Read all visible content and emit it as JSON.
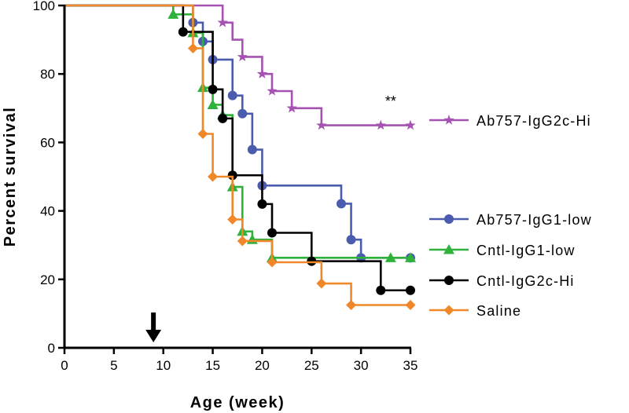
{
  "chart_data": {
    "type": "step",
    "title": "",
    "xlabel": "Age (week)",
    "ylabel": "Percent survival",
    "xlim": [
      0,
      35
    ],
    "ylim": [
      0,
      100
    ],
    "xticks": [
      0,
      5,
      10,
      15,
      20,
      25,
      30,
      35
    ],
    "yticks": [
      0,
      20,
      40,
      60,
      80,
      100
    ],
    "grid": false,
    "annotations": [
      {
        "text": "**",
        "x": 33,
        "y": 72
      },
      {
        "text": "arrow-down",
        "x": 9,
        "y": 2
      }
    ],
    "series": [
      {
        "name": "Ab757-IgG2c-Hi",
        "color": "#a652b3",
        "marker": "star",
        "steps": [
          [
            0,
            100
          ],
          [
            16,
            95
          ],
          [
            17,
            90
          ],
          [
            18,
            85
          ],
          [
            20,
            80
          ],
          [
            21,
            75
          ],
          [
            23,
            70
          ],
          [
            26,
            65
          ],
          [
            35,
            65
          ]
        ],
        "markers": [
          [
            16,
            95
          ],
          [
            18,
            85
          ],
          [
            20,
            80
          ],
          [
            21,
            75
          ],
          [
            23,
            70
          ],
          [
            26,
            65
          ],
          [
            32,
            65
          ],
          [
            35,
            65
          ]
        ]
      },
      {
        "name": "Ab757-IgG1-low",
        "color": "#4b5cae",
        "marker": "circle",
        "steps": [
          [
            0,
            100
          ],
          [
            13,
            95
          ],
          [
            14,
            89.5
          ],
          [
            15,
            84.2
          ],
          [
            17,
            73.7
          ],
          [
            18,
            68.4
          ],
          [
            19,
            57.9
          ],
          [
            20,
            47.4
          ],
          [
            28,
            42.1
          ],
          [
            29,
            31.6
          ],
          [
            30,
            26.3
          ],
          [
            35,
            26.3
          ]
        ],
        "markers": [
          [
            13,
            95
          ],
          [
            14,
            89.5
          ],
          [
            15,
            84.2
          ],
          [
            17,
            73.7
          ],
          [
            18,
            68.4
          ],
          [
            19,
            57.9
          ],
          [
            20,
            47.4
          ],
          [
            28,
            42.1
          ],
          [
            29,
            31.6
          ],
          [
            30,
            26.3
          ],
          [
            35,
            26.3
          ]
        ]
      },
      {
        "name": "Cntl-IgG1-low",
        "color": "#2eb23c",
        "marker": "triangle",
        "steps": [
          [
            0,
            100
          ],
          [
            11,
            97.4
          ],
          [
            13,
            92
          ],
          [
            14,
            76
          ],
          [
            15,
            71
          ],
          [
            16,
            68
          ],
          [
            17,
            47
          ],
          [
            18,
            34
          ],
          [
            19,
            31.6
          ],
          [
            21,
            26.3
          ],
          [
            35,
            26.3
          ]
        ],
        "markers": [
          [
            11,
            97.4
          ],
          [
            13,
            92
          ],
          [
            14,
            76
          ],
          [
            15,
            71
          ],
          [
            16,
            68
          ],
          [
            17,
            47
          ],
          [
            18,
            34
          ],
          [
            19,
            31.6
          ],
          [
            21,
            26.3
          ],
          [
            33,
            26.3
          ],
          [
            35,
            26.3
          ]
        ]
      },
      {
        "name": "Cntl-IgG2c-Hi",
        "color": "#000000",
        "marker": "circle",
        "steps": [
          [
            0,
            100
          ],
          [
            12,
            92.3
          ],
          [
            15,
            75.5
          ],
          [
            16,
            67
          ],
          [
            17,
            50.4
          ],
          [
            20,
            42
          ],
          [
            21,
            33.6
          ],
          [
            25,
            25.3
          ],
          [
            32,
            16.8
          ],
          [
            35,
            16.8
          ]
        ],
        "markers": [
          [
            12,
            92.3
          ],
          [
            15,
            75.5
          ],
          [
            16,
            67
          ],
          [
            17,
            50.4
          ],
          [
            20,
            42
          ],
          [
            21,
            33.6
          ],
          [
            25,
            25.3
          ],
          [
            32,
            16.8
          ],
          [
            35,
            16.8
          ]
        ]
      },
      {
        "name": "Saline",
        "color": "#f0882a",
        "marker": "diamond",
        "steps": [
          [
            0,
            100
          ],
          [
            13,
            87.5
          ],
          [
            14,
            62.5
          ],
          [
            15,
            50
          ],
          [
            17,
            37.5
          ],
          [
            18,
            31.2
          ],
          [
            21,
            25
          ],
          [
            26,
            18.8
          ],
          [
            29,
            12.5
          ],
          [
            35,
            12.5
          ]
        ],
        "markers": [
          [
            13,
            87.5
          ],
          [
            14,
            62.5
          ],
          [
            15,
            50
          ],
          [
            17,
            37.5
          ],
          [
            18,
            31.2
          ],
          [
            21,
            25
          ],
          [
            26,
            18.8
          ],
          [
            29,
            12.5
          ],
          [
            35,
            12.5
          ]
        ]
      }
    ]
  }
}
